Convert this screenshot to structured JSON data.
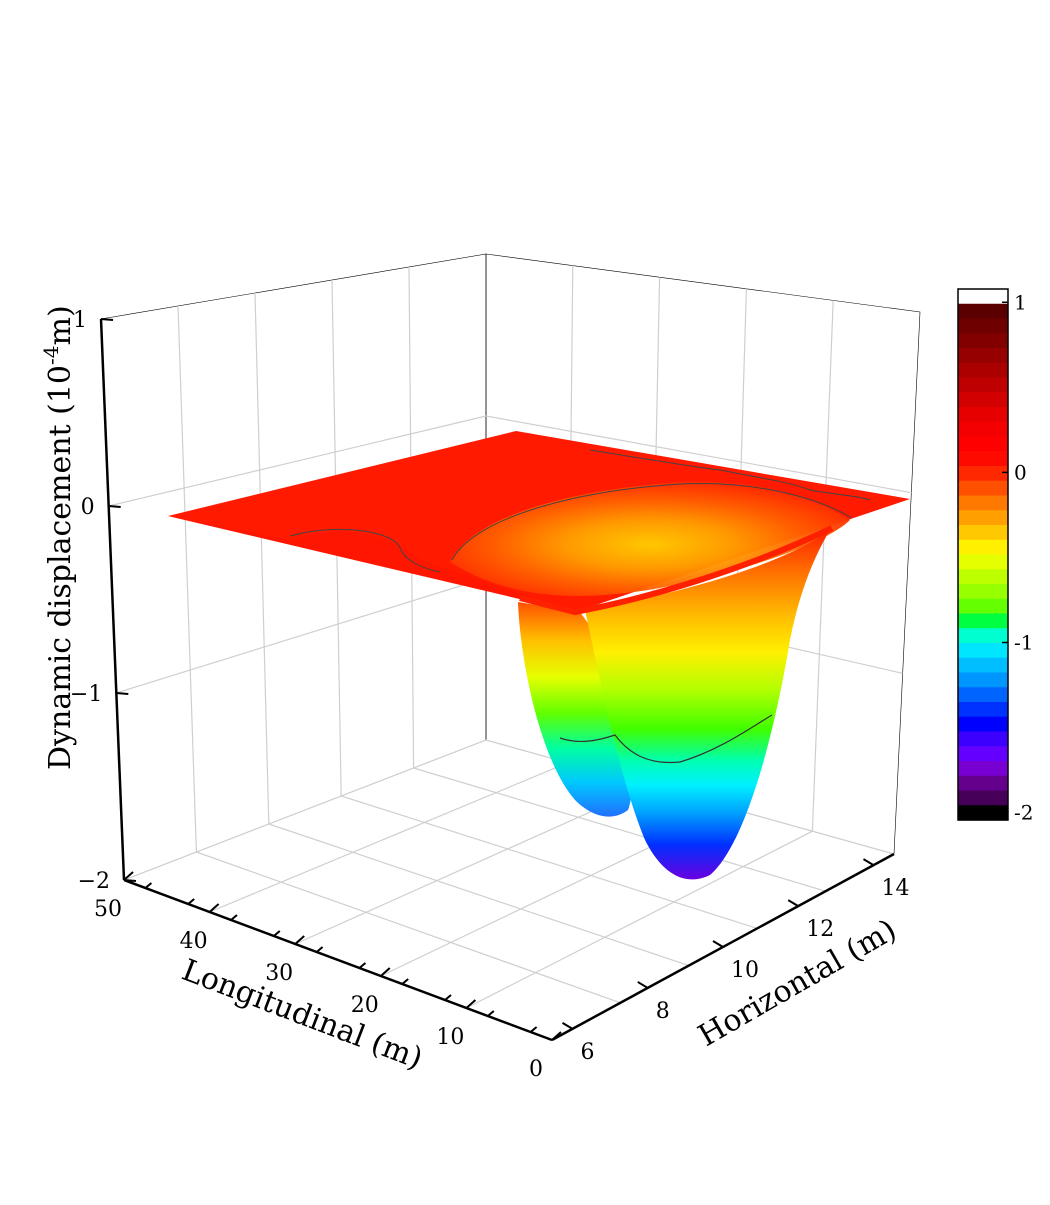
{
  "chart_data": {
    "type": "surface3d",
    "title": "",
    "zlabel": "Dynamic displacement (10",
    "zlabel_exp": "-4",
    "zlabel_unit": "m)",
    "xlabel": "Longitudinal (m)",
    "ylabel": "Horizontal (m)",
    "x_ticks": [
      "0",
      "10",
      "20",
      "30",
      "40",
      "50"
    ],
    "y_ticks": [
      "6",
      "8",
      "10",
      "12",
      "14"
    ],
    "z_ticks": [
      "−2",
      "−1",
      "0",
      "1"
    ],
    "xlim": [
      0,
      50
    ],
    "ylim": [
      5,
      15
    ],
    "zlim": [
      -2,
      1
    ],
    "surface": {
      "description_values": [
        {
          "x": 0,
          "y": 5,
          "z": 0.0
        },
        {
          "x": 50,
          "y": 15,
          "z": 0.0
        },
        {
          "x": 3,
          "y": 9,
          "z": -1.7
        },
        {
          "x": 3,
          "y": 12,
          "z": -2.0
        }
      ],
      "baseline": 0.0,
      "trough_min": -2.0
    },
    "colorbar": {
      "ticks": [
        "1",
        "0",
        "-1",
        "-2"
      ],
      "min": -2,
      "max": 1,
      "colors": [
        "#ffffff",
        "#5a0000",
        "#6e0000",
        "#820000",
        "#960000",
        "#aa0000",
        "#be0000",
        "#d20000",
        "#e60000",
        "#f50000",
        "#ff0000",
        "#ff0a00",
        "#ff2800",
        "#ff5000",
        "#ff7800",
        "#ffa000",
        "#ffc800",
        "#fff000",
        "#e6ff00",
        "#beff00",
        "#96ff00",
        "#64ff00",
        "#00ff40",
        "#00ffd0",
        "#00e6ff",
        "#00beff",
        "#0096ff",
        "#0064ff",
        "#0032ff",
        "#0000ff",
        "#3c00ff",
        "#6400ff",
        "#7800d2",
        "#64008c",
        "#46005a",
        "#000000"
      ]
    },
    "grid": true
  }
}
